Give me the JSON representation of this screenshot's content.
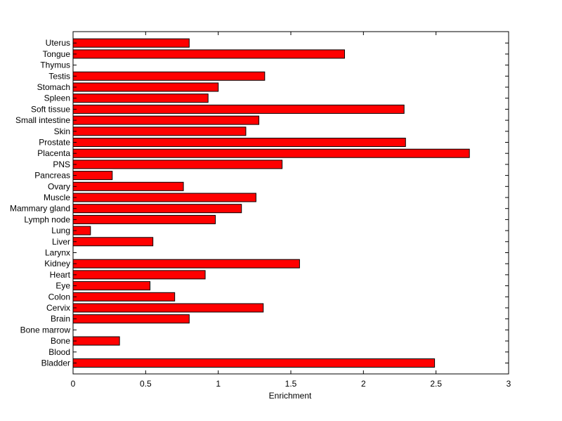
{
  "chart_data": {
    "type": "bar",
    "orientation": "horizontal",
    "categories": [
      "Bladder",
      "Blood",
      "Bone",
      "Bone marrow",
      "Brain",
      "Cervix",
      "Colon",
      "Eye",
      "Heart",
      "Kidney",
      "Larynx",
      "Liver",
      "Lung",
      "Lymph node",
      "Mammary gland",
      "Muscle",
      "Ovary",
      "Pancreas",
      "PNS",
      "Placenta",
      "Prostate",
      "Skin",
      "Small intestine",
      "Soft tissue",
      "Spleen",
      "Stomach",
      "Testis",
      "Thymus",
      "Tongue",
      "Uterus"
    ],
    "values": [
      2.49,
      0,
      0.32,
      0,
      0.8,
      1.31,
      0.7,
      0.53,
      0.91,
      1.56,
      0,
      0.55,
      0.12,
      0.98,
      1.16,
      1.26,
      0.76,
      0.27,
      1.44,
      2.73,
      2.29,
      1.19,
      1.28,
      2.28,
      0.93,
      1.0,
      1.32,
      0,
      1.87,
      0.8
    ],
    "xlabel": "Enrichment",
    "ylabel": "",
    "title": "",
    "xlim": [
      0,
      3
    ],
    "xticks": [
      "0",
      "0.5",
      "1",
      "1.5",
      "2",
      "2.5",
      "3"
    ],
    "bar_color": "#ff0000",
    "edge_color": "#000000",
    "grid": false,
    "legend": "none"
  }
}
